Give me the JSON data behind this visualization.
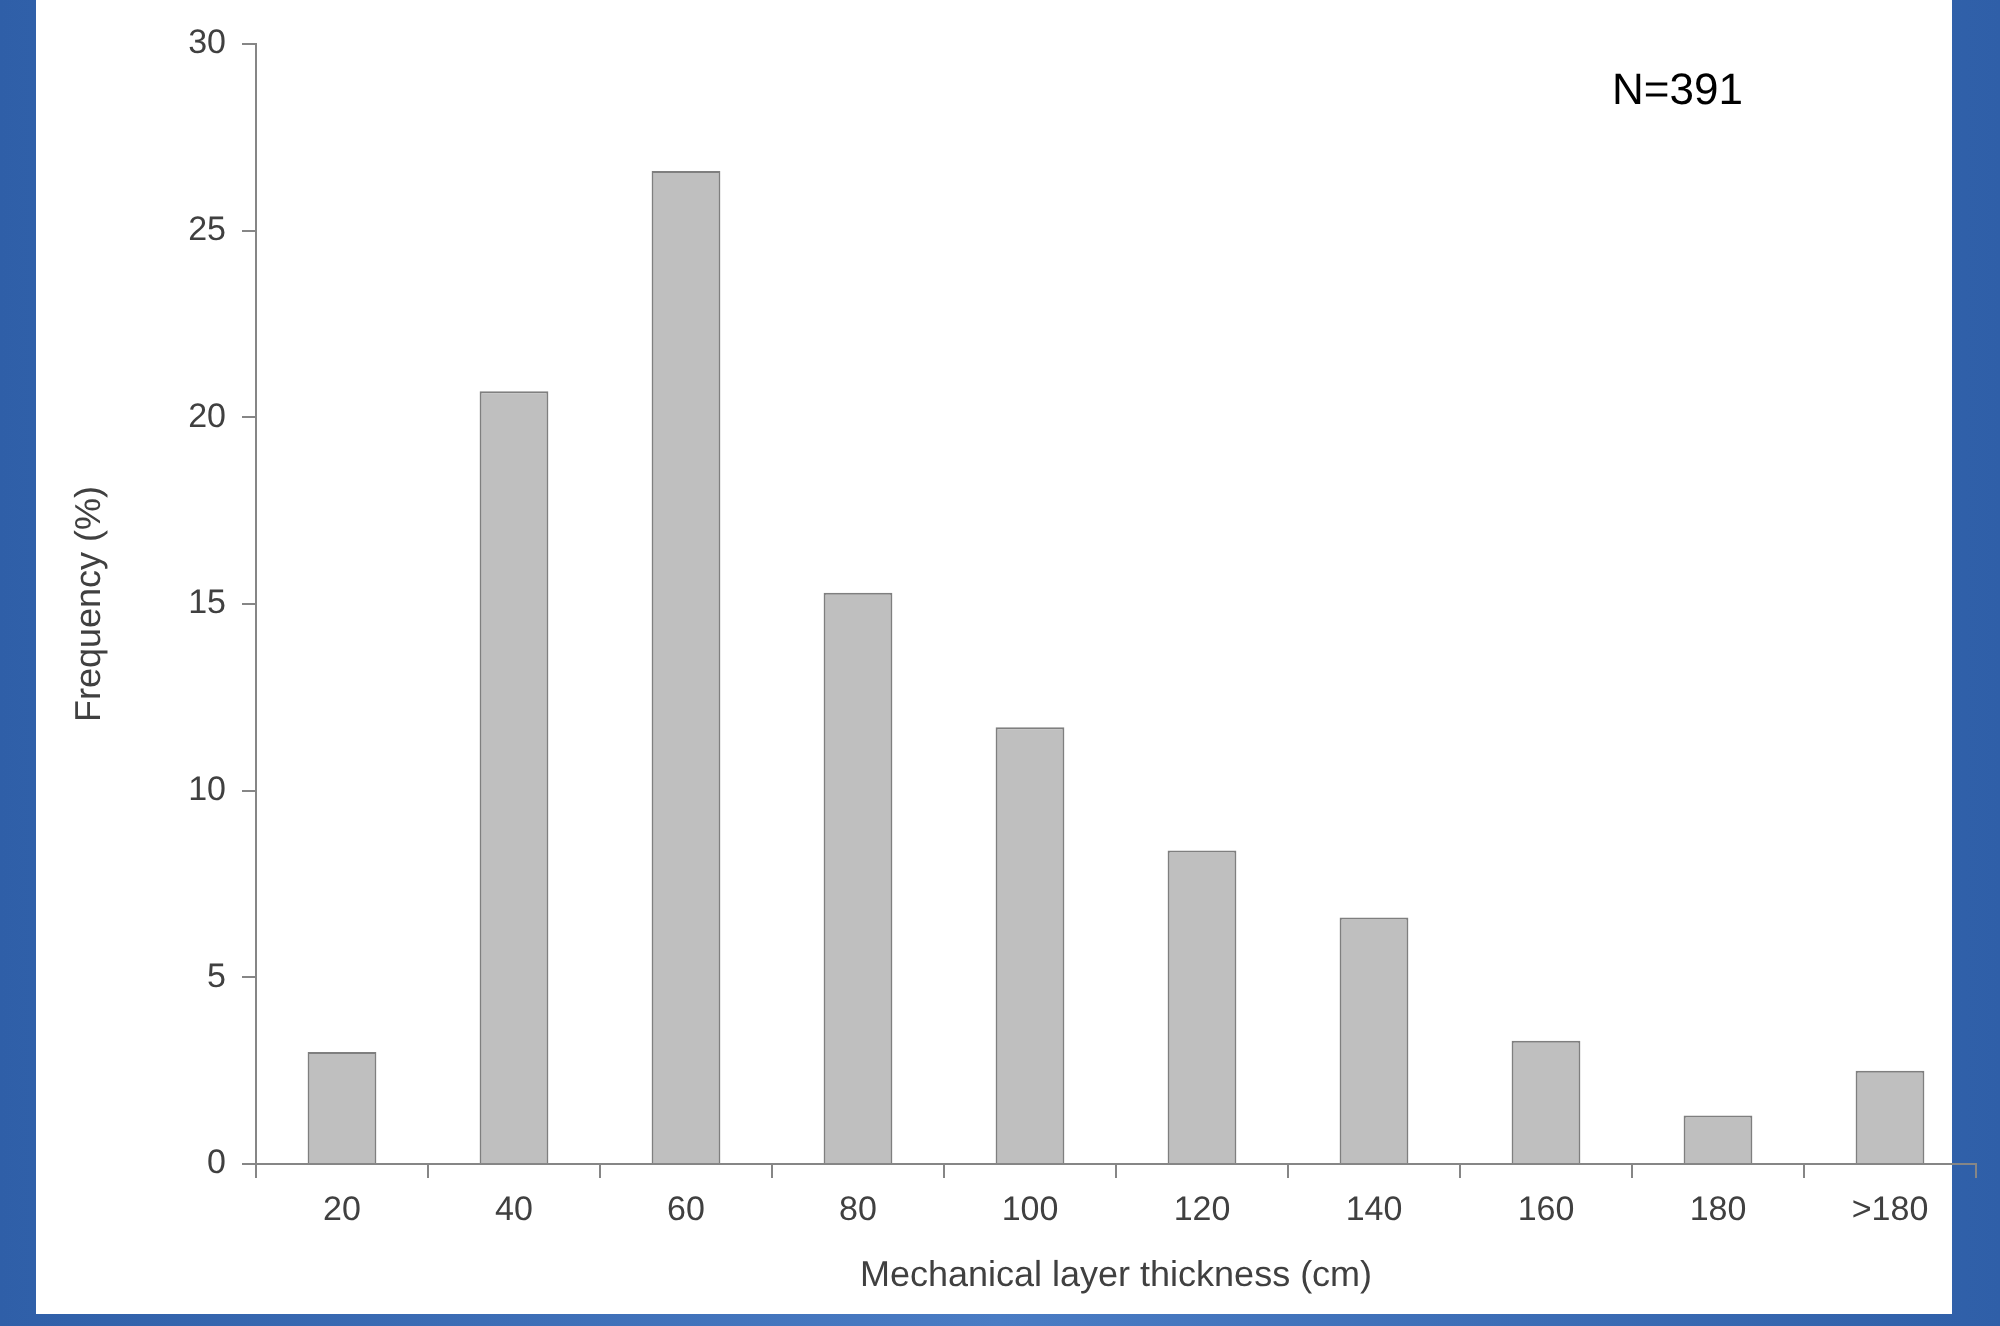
{
  "chart_data": {
    "type": "bar",
    "xlabel": "Mechanical layer thickness (cm)",
    "ylabel": "Frequency (%)",
    "categories": [
      "20",
      "40",
      "60",
      "80",
      "100",
      "120",
      "140",
      "160",
      "180",
      ">180"
    ],
    "values": [
      3.0,
      20.7,
      26.6,
      15.3,
      11.7,
      8.4,
      6.6,
      3.3,
      1.3,
      2.5
    ],
    "color": "#bfbfbf",
    "ylim": [
      0,
      30
    ],
    "yticks": [
      0,
      5,
      10,
      15,
      20,
      25,
      30
    ],
    "grid": false,
    "legend": false,
    "annotations": [
      "N=391"
    ]
  }
}
